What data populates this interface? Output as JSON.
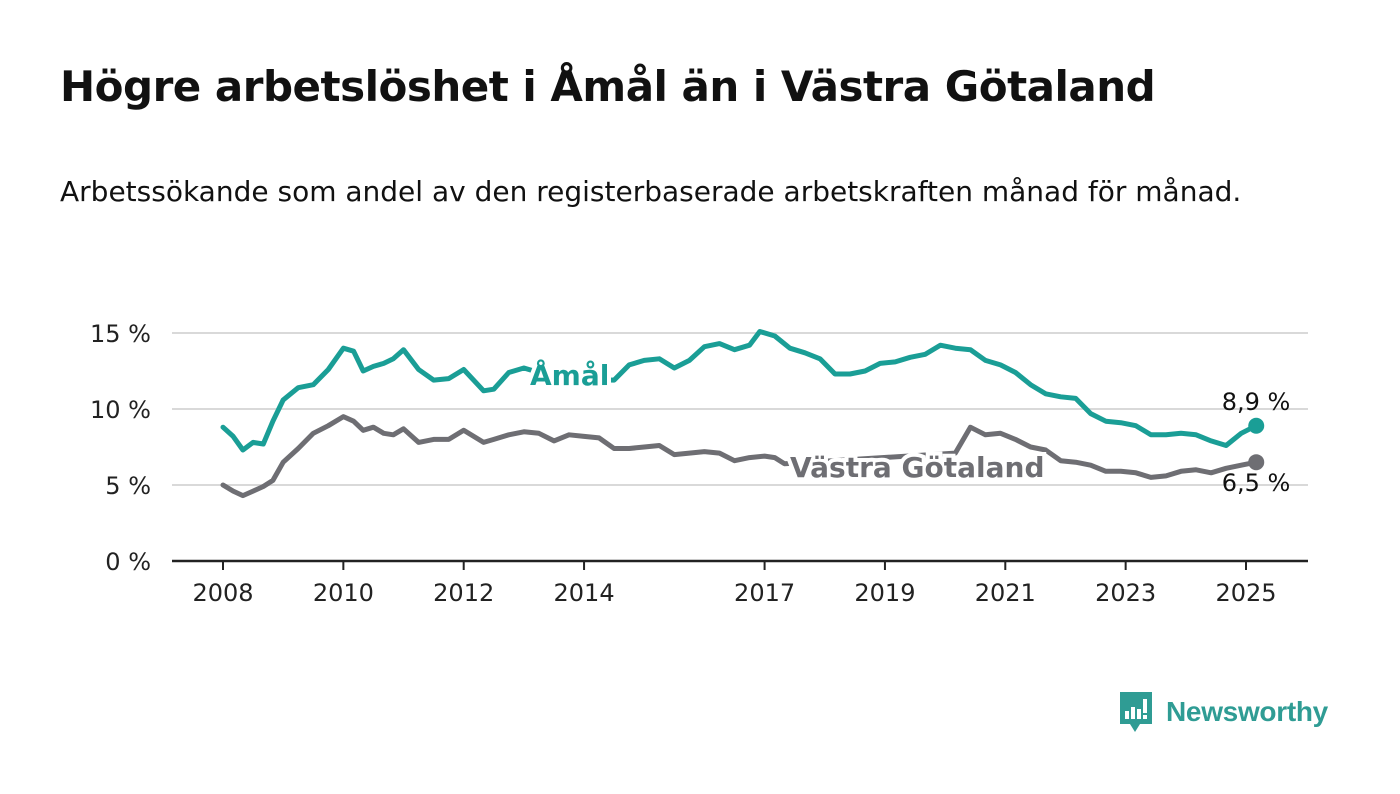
{
  "title": "Högre arbetslöshet i Åmål än i Västra Götaland",
  "subtitle": "Arbetssökande som andel av den registerbaserade arbetskraften månad för månad.",
  "brand": {
    "name": "Newsworthy",
    "icon": "newsworthy-logo-icon",
    "color": "#2f9c94"
  },
  "chart_data": {
    "type": "line",
    "xlim": [
      2008,
      2025.6
    ],
    "ylim": [
      0,
      15
    ],
    "ytick_values": [
      0,
      5,
      10,
      15
    ],
    "ytick_labels": [
      "0 %",
      "5 %",
      "10 %",
      "15 %"
    ],
    "xtick_values": [
      2008,
      2010,
      2012,
      2014,
      2017,
      2019,
      2021,
      2023,
      2025
    ],
    "xtick_labels": [
      "2008",
      "2010",
      "2012",
      "2014",
      "2017",
      "2019",
      "2021",
      "2023",
      "2025"
    ],
    "grid": true,
    "legend": "inline labels",
    "series": [
      {
        "name": "Åmål",
        "color": "#1a9e96",
        "label_value": "8,9 %",
        "end_marker": true,
        "x": [
          2008,
          2008.17,
          2008.33,
          2008.5,
          2008.67,
          2008.83,
          2009,
          2009.25,
          2009.5,
          2009.75,
          2010,
          2010.17,
          2010.33,
          2010.5,
          2010.67,
          2010.83,
          2011,
          2011.25,
          2011.5,
          2011.75,
          2012,
          2012.33,
          2012.5,
          2012.75,
          2013,
          2013.25,
          2013.5,
          2014.5,
          2014.75,
          2015,
          2015.25,
          2015.5,
          2015.75,
          2016,
          2016.25,
          2016.5,
          2016.75,
          2016.92,
          2017.17,
          2017.42,
          2017.67,
          2017.92,
          2018.17,
          2018.42,
          2018.67,
          2018.92,
          2019.17,
          2019.42,
          2019.67,
          2019.92,
          2020.17,
          2020.42,
          2020.67,
          2020.92,
          2021.17,
          2021.42,
          2021.67,
          2021.92,
          2022.17,
          2022.42,
          2022.67,
          2022.92,
          2023.17,
          2023.42,
          2023.67,
          2023.92,
          2024.17,
          2024.42,
          2024.67,
          2024.92,
          2025.17
        ],
        "values": [
          8.8,
          8.2,
          7.3,
          7.8,
          7.7,
          9.2,
          10.6,
          11.4,
          11.6,
          12.6,
          14.0,
          13.8,
          12.5,
          12.8,
          13.0,
          13.3,
          13.9,
          12.6,
          11.9,
          12.0,
          12.6,
          11.2,
          11.3,
          12.4,
          12.7,
          12.4,
          12.0,
          11.9,
          12.9,
          13.2,
          13.3,
          12.7,
          13.2,
          14.1,
          14.3,
          13.9,
          14.2,
          15.1,
          14.8,
          14.0,
          13.7,
          13.3,
          12.3,
          12.3,
          12.5,
          13.0,
          13.1,
          13.4,
          13.6,
          14.2,
          14.0,
          13.9,
          13.2,
          12.9,
          12.4,
          11.6,
          11.0,
          10.8,
          10.7,
          9.7,
          9.2,
          9.1,
          8.9,
          8.3,
          8.3,
          8.4,
          8.3,
          7.9,
          7.6,
          8.4,
          8.9
        ]
      },
      {
        "name": "Västra Götaland",
        "color": "#6e6e73",
        "label_value": "6,5 %",
        "end_marker": true,
        "x": [
          2008,
          2008.17,
          2008.33,
          2008.5,
          2008.67,
          2008.83,
          2009,
          2009.25,
          2009.5,
          2009.75,
          2010,
          2010.17,
          2010.33,
          2010.5,
          2010.67,
          2010.83,
          2011,
          2011.25,
          2011.5,
          2011.75,
          2012,
          2012.33,
          2012.5,
          2012.75,
          2013,
          2013.25,
          2013.5,
          2013.75,
          2014,
          2014.25,
          2014.5,
          2014.75,
          2015,
          2015.25,
          2015.5,
          2015.75,
          2016,
          2016.25,
          2016.5,
          2016.75,
          2017,
          2017.17,
          2017.33,
          2020.17,
          2020.42,
          2020.67,
          2020.92,
          2021.17,
          2021.42,
          2021.67,
          2021.92,
          2022.17,
          2022.42,
          2022.67,
          2022.92,
          2023.17,
          2023.42,
          2023.67,
          2023.92,
          2024.17,
          2024.42,
          2024.67,
          2024.92,
          2025.17
        ],
        "values": [
          5.0,
          4.6,
          4.3,
          4.6,
          4.9,
          5.3,
          6.5,
          7.4,
          8.4,
          8.9,
          9.5,
          9.2,
          8.6,
          8.8,
          8.4,
          8.3,
          8.7,
          7.8,
          8.0,
          8.0,
          8.6,
          7.8,
          8.0,
          8.3,
          8.5,
          8.4,
          7.9,
          8.3,
          8.2,
          8.1,
          7.4,
          7.4,
          7.5,
          7.6,
          7.0,
          7.1,
          7.2,
          7.1,
          6.6,
          6.8,
          6.9,
          6.8,
          6.4,
          7.1,
          8.8,
          8.3,
          8.4,
          8.0,
          7.5,
          7.3,
          6.6,
          6.5,
          6.3,
          5.9,
          5.9,
          5.8,
          5.5,
          5.6,
          5.9,
          6.0,
          5.8,
          6.1,
          6.3,
          6.5
        ]
      }
    ]
  }
}
